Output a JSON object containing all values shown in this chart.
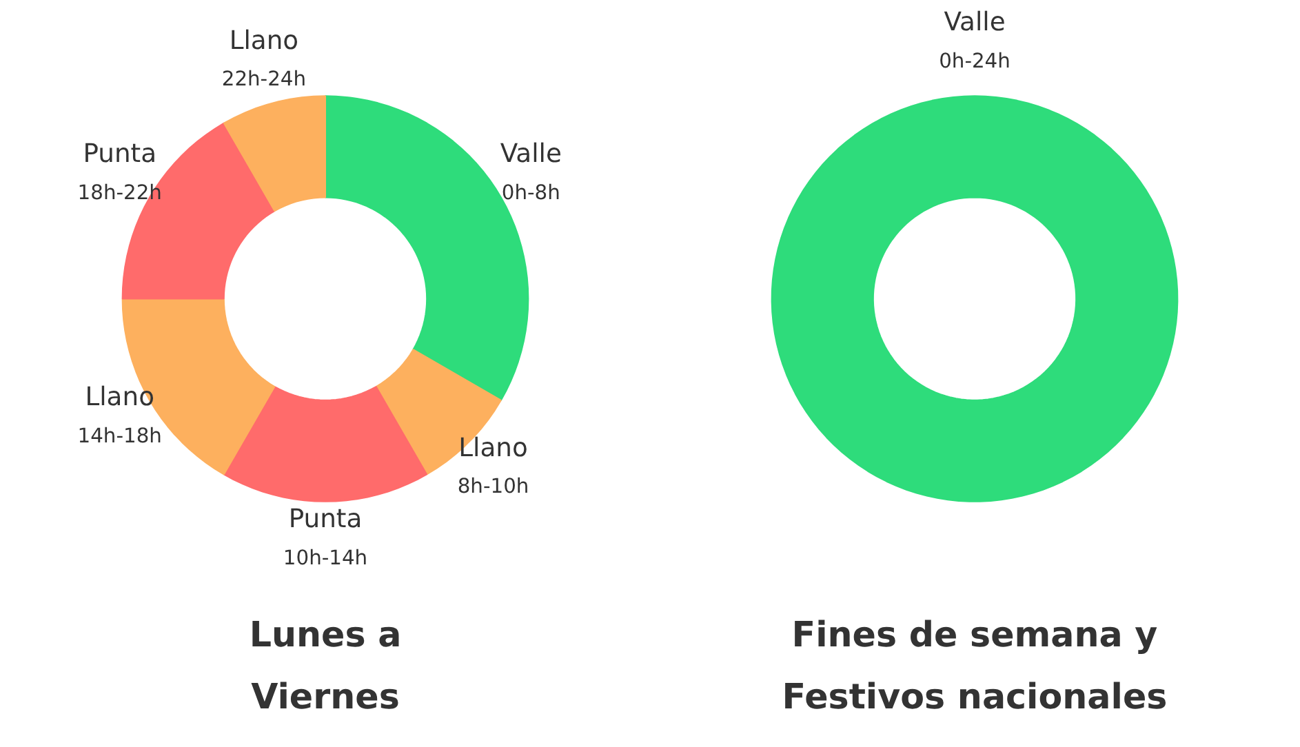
{
  "chart_data": [
    {
      "type": "donut",
      "title": "Lunes a\nViernes",
      "categories": [
        "Valle\n0h-8h",
        "Llano\n8h-10h",
        "Punta\n10h-14h",
        "Llano\n14h-18h",
        "Punta\n18h-22h",
        "Llano\n22h-24h"
      ],
      "values": [
        33.34,
        8.33,
        16.67,
        16.67,
        16.67,
        8.33
      ],
      "colors": [
        "#2edc7b",
        "#fdb05e",
        "#ff6b6b",
        "#fdb05e",
        "#ff6b6b",
        "#fdb05e"
      ],
      "legend": false
    },
    {
      "type": "donut",
      "title": "Fines de semana y\nFestivos nacionales",
      "categories": [
        "Valle\n0h-24h"
      ],
      "values": [
        100
      ],
      "colors": [
        "#2edc7b"
      ],
      "legend": false
    }
  ]
}
